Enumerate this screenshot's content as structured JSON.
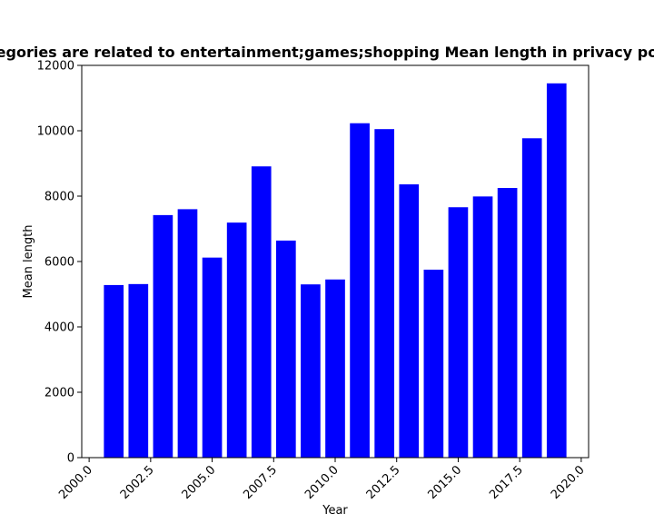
{
  "chart_data": {
    "type": "bar",
    "title": "Categories are related to entertainment;games;shopping Mean length in privacy policies",
    "xlabel": "Year",
    "ylabel": "Mean length",
    "x": [
      2001,
      2002,
      2003,
      2004,
      2005,
      2006,
      2007,
      2008,
      2009,
      2010,
      2011,
      2012,
      2013,
      2014,
      2015,
      2016,
      2017,
      2018,
      2019
    ],
    "values": [
      5280,
      5310,
      7420,
      7600,
      6120,
      7190,
      8910,
      6640,
      5300,
      5450,
      10230,
      10050,
      8360,
      5750,
      7660,
      7990,
      8250,
      9770,
      11450
    ],
    "xlim": [
      1999.7,
      2020.3
    ],
    "ylim": [
      0,
      12000
    ],
    "xticks": [
      "2000.0",
      "2002.5",
      "2005.0",
      "2007.5",
      "2010.0",
      "2012.5",
      "2015.0",
      "2017.5",
      "2020.0"
    ],
    "yticks": [
      "0",
      "2000",
      "4000",
      "6000",
      "8000",
      "10000",
      "12000"
    ],
    "bar_color": "#0000ff",
    "grid": false,
    "legend": "none"
  }
}
